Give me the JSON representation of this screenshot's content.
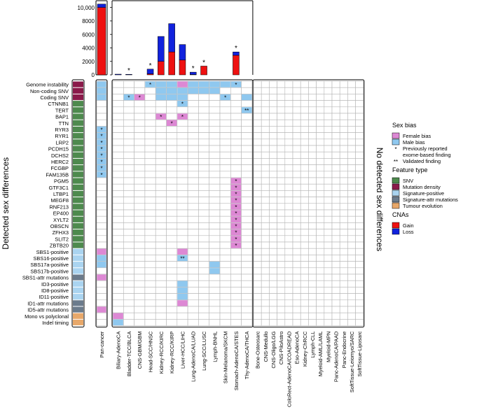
{
  "chart_data": {
    "type": "heatmap",
    "y_titles": {
      "left": "Detected sex differences",
      "right": "No detected sex differences"
    },
    "rows": [
      {
        "label": "Genome instability",
        "type": "mutation-density"
      },
      {
        "label": "Non-coding SNV",
        "type": "mutation-density"
      },
      {
        "label": "Coding SNV",
        "type": "mutation-density"
      },
      {
        "label": "CTNNB1",
        "type": "snv"
      },
      {
        "label": "TERT",
        "type": "snv"
      },
      {
        "label": "BAP1",
        "type": "snv"
      },
      {
        "label": "TTN",
        "type": "snv"
      },
      {
        "label": "RYR3",
        "type": "snv"
      },
      {
        "label": "RYR1",
        "type": "snv"
      },
      {
        "label": "LRP2",
        "type": "snv"
      },
      {
        "label": "PCDH15",
        "type": "snv"
      },
      {
        "label": "DCHS2",
        "type": "snv"
      },
      {
        "label": "HERC2",
        "type": "snv"
      },
      {
        "label": "FCGBP",
        "type": "snv"
      },
      {
        "label": "FAM135B",
        "type": "snv"
      },
      {
        "label": "PGM5",
        "type": "snv"
      },
      {
        "label": "GTF3C1",
        "type": "snv"
      },
      {
        "label": "LTBP1",
        "type": "snv"
      },
      {
        "label": "MEGF8",
        "type": "snv"
      },
      {
        "label": "RNF213",
        "type": "snv"
      },
      {
        "label": "EP400",
        "type": "snv"
      },
      {
        "label": "XYLT2",
        "type": "snv"
      },
      {
        "label": "OBSCN",
        "type": "snv"
      },
      {
        "label": "ZFHX3",
        "type": "snv"
      },
      {
        "label": "SLIT2",
        "type": "snv"
      },
      {
        "label": "ZBTB20",
        "type": "snv"
      },
      {
        "label": "SBS1-positive",
        "type": "signature-positive"
      },
      {
        "label": "SBS16-positive",
        "type": "signature-positive"
      },
      {
        "label": "SBS17a-positive",
        "type": "signature-positive"
      },
      {
        "label": "SBS17b-positive",
        "type": "signature-positive"
      },
      {
        "label": "SBS1-attr mutations",
        "type": "signature-attr"
      },
      {
        "label": "ID3-positive",
        "type": "signature-positive"
      },
      {
        "label": "ID8-positive",
        "type": "signature-positive"
      },
      {
        "label": "ID11-positive",
        "type": "signature-positive"
      },
      {
        "label": "ID1-attr mutations",
        "type": "signature-attr"
      },
      {
        "label": "ID5-attr mutations",
        "type": "signature-attr"
      },
      {
        "label": "Mono vs polyclonal",
        "type": "tumour-evolution"
      },
      {
        "label": "Indel timing",
        "type": "tumour-evolution"
      }
    ],
    "pan_cancer": {
      "label": "Pan-cancer",
      "bar": {
        "gain": 10000,
        "loss": 500
      },
      "cells": [
        {
          "row": 0,
          "bias": "male"
        },
        {
          "row": 1,
          "bias": "male"
        },
        {
          "row": 2,
          "bias": "male"
        },
        {
          "row": 7,
          "bias": "male",
          "mark": "*"
        },
        {
          "row": 8,
          "bias": "male",
          "mark": "*"
        },
        {
          "row": 9,
          "bias": "male",
          "mark": "*"
        },
        {
          "row": 10,
          "bias": "male",
          "mark": "*"
        },
        {
          "row": 11,
          "bias": "male",
          "mark": "*"
        },
        {
          "row": 12,
          "bias": "male",
          "mark": "*"
        },
        {
          "row": 13,
          "bias": "male",
          "mark": "*"
        },
        {
          "row": 14,
          "bias": "male",
          "mark": "*"
        },
        {
          "row": 26,
          "bias": "female"
        },
        {
          "row": 27,
          "bias": "male"
        },
        {
          "row": 28,
          "bias": "male"
        },
        {
          "row": 30,
          "bias": "female"
        },
        {
          "row": 35,
          "bias": "female"
        }
      ]
    },
    "detected_types": [
      "Biliary-AdenoCA",
      "Bladder-TCC/BLCA",
      "CNS-GBM/GBM",
      "Head-SCC/HNSC",
      "Kidney-RCC/KIRC",
      "Kidney-RCC/KIRP",
      "Liver-HCC/LIHC",
      "Lung-AdenoCA/LUAD",
      "Lung-SCC/LUSC",
      "Lymph-BNHL",
      "Skin-Melanoma/SKCM",
      "Stomach-AdenoCA/STES",
      "Thy-AdenoCA/THCA"
    ],
    "cna_bars": {
      "ylim": [
        0,
        11000
      ],
      "yticks": [
        "0",
        "2000",
        "4000",
        "6000",
        "8000",
        "10,000"
      ],
      "ytick_values": [
        0,
        2000,
        4000,
        6000,
        8000,
        10000
      ],
      "values": [
        {
          "gain": 0,
          "loss": 100,
          "star": false
        },
        {
          "gain": 0,
          "loss": 80,
          "star": true
        },
        {
          "gain": 0,
          "loss": 0,
          "star": false
        },
        {
          "gain": 150,
          "loss": 700,
          "star": true
        },
        {
          "gain": 2000,
          "loss": 3700,
          "star": false
        },
        {
          "gain": 3400,
          "loss": 4200,
          "star": false
        },
        {
          "gain": 2200,
          "loss": 2300,
          "star": false
        },
        {
          "gain": 50,
          "loss": 350,
          "star": true
        },
        {
          "gain": 1300,
          "loss": 0,
          "star": true
        },
        {
          "gain": 0,
          "loss": 0,
          "star": false
        },
        {
          "gain": 0,
          "loss": 0,
          "star": false
        },
        {
          "gain": 2900,
          "loss": 500,
          "star": true
        },
        {
          "gain": 0,
          "loss": 0,
          "star": false
        }
      ]
    },
    "cells": [
      {
        "row": 0,
        "col": 3,
        "bias": "male",
        "mark": "*"
      },
      {
        "row": 0,
        "col": 4,
        "bias": "male"
      },
      {
        "row": 0,
        "col": 5,
        "bias": "male"
      },
      {
        "row": 0,
        "col": 6,
        "bias": "female"
      },
      {
        "row": 0,
        "col": 7,
        "bias": "male"
      },
      {
        "row": 0,
        "col": 8,
        "bias": "male"
      },
      {
        "row": 0,
        "col": 9,
        "bias": "male"
      },
      {
        "row": 0,
        "col": 10,
        "bias": "male"
      },
      {
        "row": 0,
        "col": 11,
        "bias": "male",
        "mark": "*"
      },
      {
        "row": 1,
        "col": 4,
        "bias": "male"
      },
      {
        "row": 1,
        "col": 5,
        "bias": "male"
      },
      {
        "row": 1,
        "col": 6,
        "bias": "male"
      },
      {
        "row": 1,
        "col": 7,
        "bias": "male"
      },
      {
        "row": 1,
        "col": 8,
        "bias": "male"
      },
      {
        "row": 1,
        "col": 9,
        "bias": "male"
      },
      {
        "row": 2,
        "col": 1,
        "bias": "male",
        "mark": "*"
      },
      {
        "row": 2,
        "col": 2,
        "bias": "female",
        "mark": "*"
      },
      {
        "row": 2,
        "col": 4,
        "bias": "male"
      },
      {
        "row": 2,
        "col": 5,
        "bias": "male"
      },
      {
        "row": 2,
        "col": 6,
        "bias": "male"
      },
      {
        "row": 2,
        "col": 10,
        "bias": "male",
        "mark": "*"
      },
      {
        "row": 2,
        "col": 12,
        "bias": "male"
      },
      {
        "row": 3,
        "col": 6,
        "bias": "male",
        "mark": "*"
      },
      {
        "row": 4,
        "col": 12,
        "bias": "male",
        "mark": "**"
      },
      {
        "row": 5,
        "col": 4,
        "bias": "female",
        "mark": "*"
      },
      {
        "row": 5,
        "col": 6,
        "bias": "female",
        "mark": "*"
      },
      {
        "row": 6,
        "col": 5,
        "bias": "female",
        "mark": "*"
      },
      {
        "row": 15,
        "col": 11,
        "bias": "female",
        "mark": "*"
      },
      {
        "row": 16,
        "col": 11,
        "bias": "female",
        "mark": "*"
      },
      {
        "row": 17,
        "col": 11,
        "bias": "female",
        "mark": "*"
      },
      {
        "row": 18,
        "col": 11,
        "bias": "female",
        "mark": "*"
      },
      {
        "row": 19,
        "col": 11,
        "bias": "female",
        "mark": "*"
      },
      {
        "row": 20,
        "col": 11,
        "bias": "female",
        "mark": "*"
      },
      {
        "row": 21,
        "col": 11,
        "bias": "female",
        "mark": "*"
      },
      {
        "row": 22,
        "col": 11,
        "bias": "female",
        "mark": "*"
      },
      {
        "row": 23,
        "col": 11,
        "bias": "female",
        "mark": "*"
      },
      {
        "row": 24,
        "col": 11,
        "bias": "female",
        "mark": "*"
      },
      {
        "row": 25,
        "col": 11,
        "bias": "female",
        "mark": "*"
      },
      {
        "row": 26,
        "col": 6,
        "bias": "female"
      },
      {
        "row": 27,
        "col": 6,
        "bias": "male",
        "mark": "**"
      },
      {
        "row": 28,
        "col": 9,
        "bias": "male"
      },
      {
        "row": 29,
        "col": 9,
        "bias": "male"
      },
      {
        "row": 31,
        "col": 6,
        "bias": "male"
      },
      {
        "row": 32,
        "col": 6,
        "bias": "male"
      },
      {
        "row": 33,
        "col": 6,
        "bias": "male"
      },
      {
        "row": 34,
        "col": 6,
        "bias": "female"
      },
      {
        "row": 36,
        "col": 0,
        "bias": "female"
      },
      {
        "row": 37,
        "col": 0,
        "bias": "male"
      }
    ],
    "undetected_types": [
      "Bone-Osteosarc",
      "CNS-Medullo",
      "CNS-Oligo/LGG",
      "CNS-PiloAstro",
      "ColoRect-AdenoCA/COADREAD",
      "Eso-AdenoCA",
      "Kidney-ChRCC",
      "Lymph-CLL",
      "Myeloid-AML/LAML",
      "Myeloid-MPN",
      "Panc-AdenoCA/PAAD",
      "Panc-Endocrine",
      "SoftTissue-Leiomyo/SARC",
      "SoftTissue-Liposarc"
    ]
  },
  "legend": {
    "sex_bias": {
      "title": "Sex bias",
      "items": [
        {
          "label": "Female bias",
          "color": "#dd88d4"
        },
        {
          "label": "Male bias",
          "color": "#8fc8ef"
        },
        {
          "label": "Previously reported exome-based finding",
          "symbol": "*"
        },
        {
          "label": "Validated finding",
          "symbol": "**"
        }
      ]
    },
    "feature_type": {
      "title": "Feature type",
      "items": [
        {
          "key": "snv",
          "label": "SNV",
          "color": "#4e8a4e"
        },
        {
          "key": "mutation-density",
          "label": "Mutation density",
          "color": "#8a1a4a"
        },
        {
          "key": "signature-positive",
          "label": "Signature-positive",
          "color": "#aad4f0"
        },
        {
          "key": "signature-attr",
          "label": "Signature-attr mutations",
          "color": "#6b7b8c"
        },
        {
          "key": "tumour-evolution",
          "label": "Tumour evolution",
          "color": "#e8a86a"
        }
      ]
    },
    "cnas": {
      "title": "CNAs",
      "items": [
        {
          "key": "gain",
          "label": "Gain",
          "color": "#ee1111"
        },
        {
          "key": "loss",
          "label": "Loss",
          "color": "#1122dd"
        }
      ]
    }
  },
  "colors": {
    "female": "#dd88d4",
    "male": "#8fc8ef",
    "grid": "#b5b5b5",
    "frame": "#000000"
  }
}
